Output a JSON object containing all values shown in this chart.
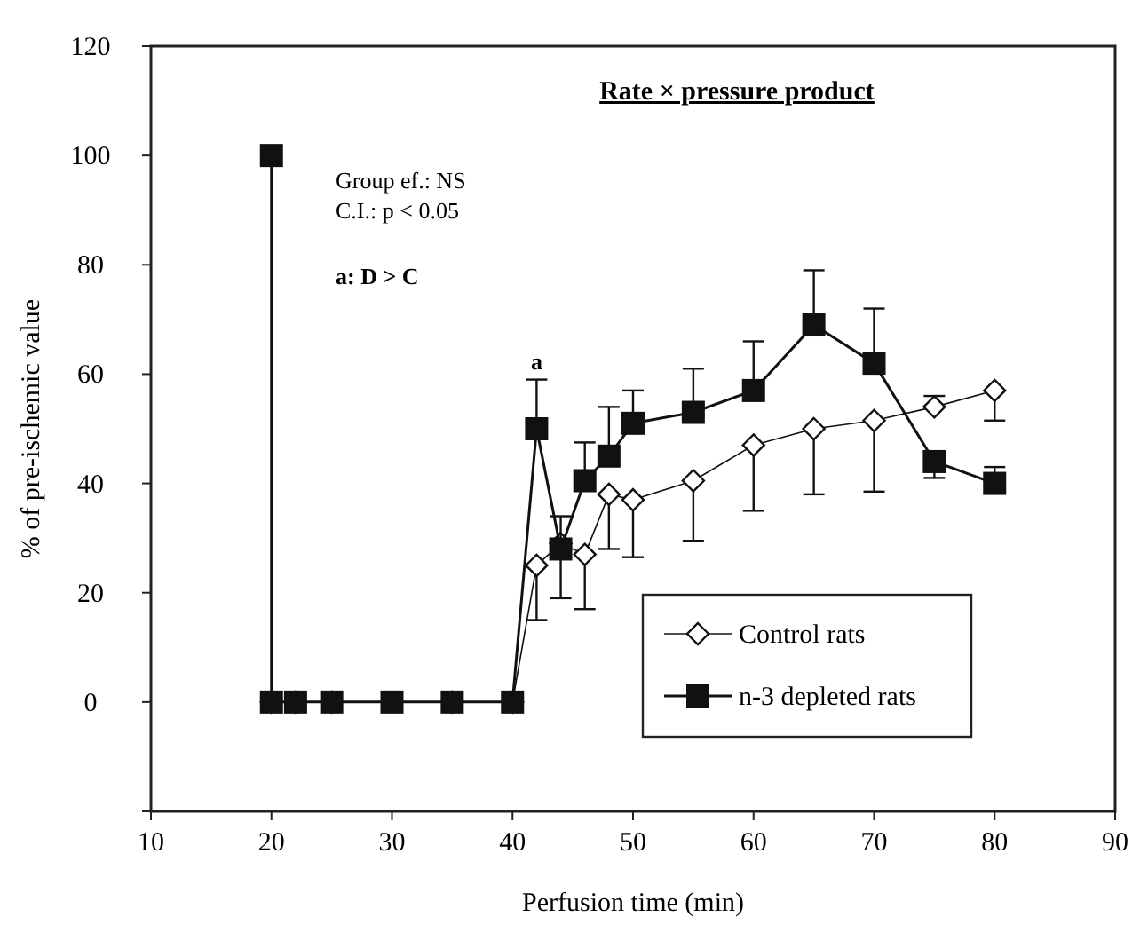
{
  "chart_data": {
    "type": "line",
    "title": "Rate × pressure product",
    "xlabel": "Perfusion time (min)",
    "ylabel": "% of pre-ischemic value",
    "xlim": [
      10,
      90
    ],
    "xticks": [
      10,
      20,
      30,
      40,
      50,
      60,
      70,
      80,
      90
    ],
    "ylim": [
      -20,
      120
    ],
    "yticks": [
      {
        "value": -20,
        "label": null
      },
      0,
      20,
      40,
      60,
      80,
      100,
      120
    ],
    "grid": false,
    "legend": "bottom right",
    "line_style": "solid",
    "annotations": [
      "Group ef.: NS",
      "C.I.: p < 0.05",
      "a: D > C",
      "a"
    ],
    "series": [
      {
        "name": "Control rats",
        "color": "#ffffff",
        "marker": "diamond",
        "x": [
          20,
          22,
          25,
          30,
          35,
          40,
          42,
          44,
          46,
          48,
          50,
          55,
          60,
          65,
          70,
          75,
          80
        ],
        "values": [
          0,
          0,
          0,
          0,
          0,
          0,
          25,
          29,
          27,
          38,
          37,
          40.5,
          47,
          50,
          51.5,
          54,
          57
        ],
        "errors": [
          null,
          null,
          null,
          null,
          null,
          null,
          [
            15,
            25
          ],
          [
            19,
            29
          ],
          [
            17,
            27
          ],
          [
            28,
            38
          ],
          [
            26.5,
            37
          ],
          [
            29.5,
            40.5
          ],
          [
            35,
            47
          ],
          [
            38,
            50
          ],
          [
            38.5,
            51.5
          ],
          [
            54,
            56
          ],
          [
            51.5,
            57
          ]
        ]
      },
      {
        "name": "n-3 depleted rats",
        "color": "#111111",
        "marker": "square",
        "x": [
          20,
          20,
          22,
          25,
          30,
          35,
          40,
          42,
          44,
          46,
          48,
          50,
          55,
          60,
          65,
          70,
          75,
          80
        ],
        "values": [
          100,
          0,
          0,
          0,
          0,
          0,
          0,
          50,
          28,
          40.5,
          45,
          51,
          53,
          57,
          69,
          62,
          44,
          40
        ],
        "errors": [
          null,
          null,
          null,
          null,
          null,
          null,
          null,
          [
            50,
            59
          ],
          [
            28,
            34
          ],
          [
            40.5,
            47.5
          ],
          [
            45,
            54
          ],
          [
            51,
            57
          ],
          [
            53,
            61
          ],
          [
            57,
            66
          ],
          [
            69,
            79
          ],
          [
            62,
            72
          ],
          [
            41,
            44
          ],
          [
            40,
            43
          ]
        ]
      }
    ]
  }
}
